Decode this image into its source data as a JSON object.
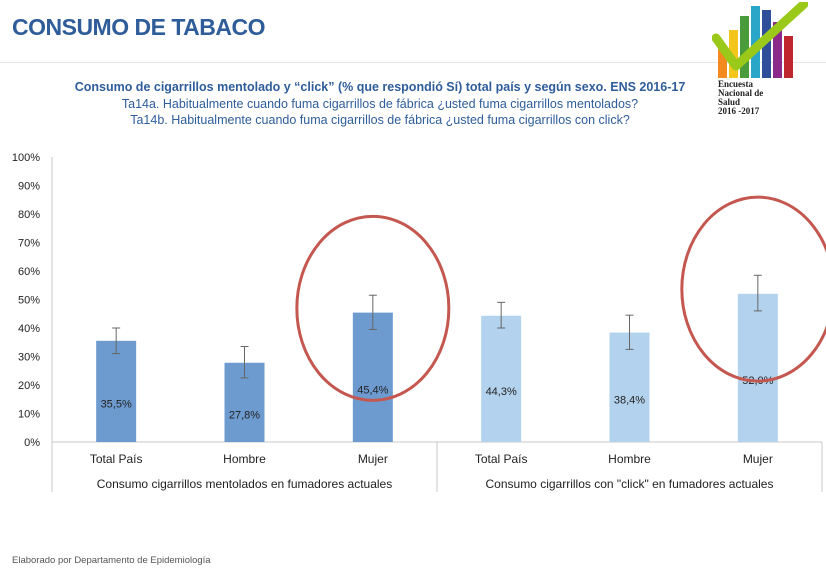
{
  "page": {
    "title": "CONSUMO DE TABACO",
    "subtitle": "Consumo de cigarrillos mentolado y “click” (% que respondió Sí) total país y  según sexo. ENS 2016-17",
    "question_a": "Ta14a. Habitualmente cuando fuma cigarrillos de fábrica ¿usted fuma cigarrillos mentolados?",
    "question_b": "Ta14b. Habitualmente cuando fuma cigarrillos de fábrica ¿usted fuma cigarrillos con click?",
    "footer": "Elaborado por Departamento de Epidemiología"
  },
  "logo": {
    "lines": [
      "Encuesta",
      "Nacional de",
      "Salud",
      "2016 -2017"
    ],
    "bar_colors": [
      "#f28a1f",
      "#f4c51a",
      "#4a9b3c",
      "#2aa6c8",
      "#2e4e9a",
      "#8b2a8a",
      "#c0262d"
    ],
    "check_color": "#9bc91a"
  },
  "colors": {
    "bar_dark": "#6d9bd0",
    "bar_light": "#b2d2ee",
    "highlight_circle": "#c4574f",
    "axis": "#c8c8c8",
    "text": "#222222"
  },
  "chart_data": {
    "type": "bar",
    "ylim": [
      0,
      100
    ],
    "y_unit": "%",
    "yticks": [
      "0%",
      "10%",
      "20%",
      "30%",
      "40%",
      "50%",
      "60%",
      "70%",
      "80%",
      "90%",
      "100%"
    ],
    "groups": [
      {
        "name": "Consumo cigarrillos mentolados en fumadores actuales",
        "categories": [
          "Total País",
          "Hombre",
          "Mujer"
        ],
        "values": [
          35.5,
          27.8,
          45.4
        ],
        "labels": [
          "35,5%",
          "27,8%",
          "45,4%"
        ],
        "error_low": [
          31.0,
          22.5,
          39.5
        ],
        "error_high": [
          40.0,
          33.5,
          51.5
        ],
        "color": "dark"
      },
      {
        "name": "Consumo cigarrillos con \"click\" en fumadores actuales",
        "categories": [
          "Total País",
          "Hombre",
          "Mujer"
        ],
        "values": [
          44.3,
          38.4,
          52.0
        ],
        "labels": [
          "44,3%",
          "38,4%",
          "52,0%"
        ],
        "error_low": [
          40.0,
          32.5,
          46.0
        ],
        "error_high": [
          49.0,
          44.5,
          58.5
        ],
        "color": "light"
      }
    ],
    "highlighted": [
      "Mujer (mentolados)",
      "Mujer (click)"
    ]
  }
}
